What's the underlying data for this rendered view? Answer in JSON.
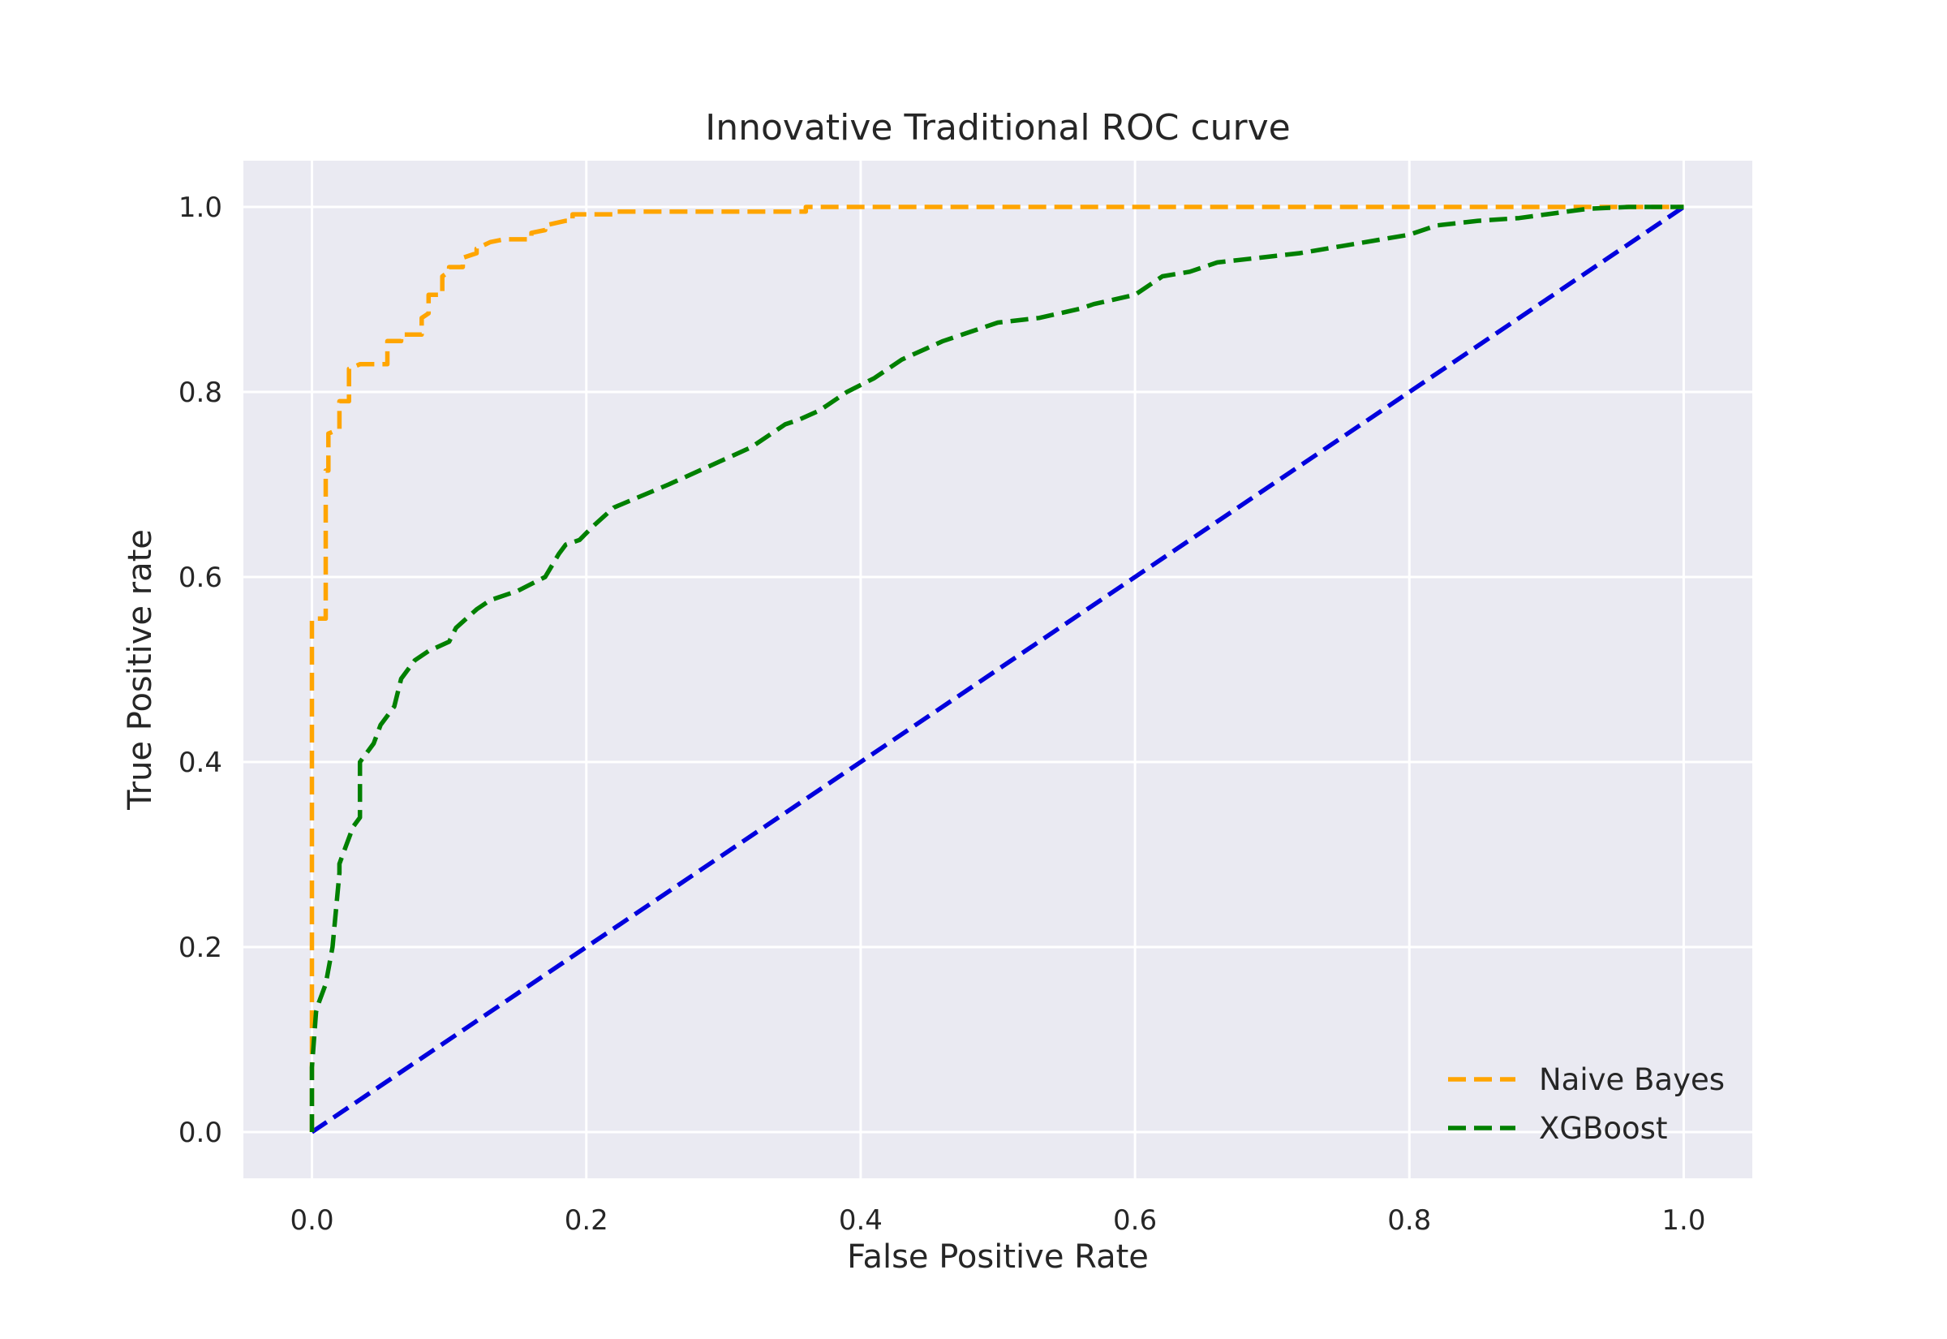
{
  "chart_data": {
    "type": "line",
    "title": "Innovative Traditional ROC curve",
    "xlabel": "False Positive Rate",
    "ylabel": "True Positive rate",
    "xlim": [
      -0.05,
      1.05
    ],
    "ylim": [
      -0.05,
      1.05
    ],
    "xticks": [
      0.0,
      0.2,
      0.4,
      0.6,
      0.8,
      1.0
    ],
    "yticks": [
      0.0,
      0.2,
      0.4,
      0.6,
      0.8,
      1.0
    ],
    "xtick_labels": [
      "0.0",
      "0.2",
      "0.4",
      "0.6",
      "0.8",
      "1.0"
    ],
    "ytick_labels": [
      "0.0",
      "0.2",
      "0.4",
      "0.6",
      "0.8",
      "1.0"
    ],
    "grid": true,
    "legend_position": "lower-right",
    "series": [
      {
        "name": "Naive Bayes",
        "color": "#ffa500",
        "dashed": true,
        "in_legend": true,
        "x": [
          0.0,
          0.0,
          0.0,
          0.01,
          0.01,
          0.012,
          0.012,
          0.02,
          0.02,
          0.027,
          0.027,
          0.035,
          0.045,
          0.055,
          0.055,
          0.065,
          0.065,
          0.075,
          0.08,
          0.08,
          0.085,
          0.085,
          0.095,
          0.095,
          0.1,
          0.1,
          0.11,
          0.11,
          0.12,
          0.12,
          0.13,
          0.14,
          0.16,
          0.16,
          0.17,
          0.17,
          0.185,
          0.19,
          0.19,
          0.22,
          0.22,
          0.3,
          0.35,
          0.36,
          0.36,
          0.6,
          0.8,
          0.9,
          1.0
        ],
        "y": [
          0.0,
          0.08,
          0.555,
          0.555,
          0.715,
          0.715,
          0.755,
          0.76,
          0.79,
          0.79,
          0.825,
          0.83,
          0.83,
          0.83,
          0.855,
          0.855,
          0.862,
          0.862,
          0.862,
          0.88,
          0.885,
          0.905,
          0.905,
          0.925,
          0.93,
          0.935,
          0.935,
          0.945,
          0.95,
          0.955,
          0.962,
          0.965,
          0.965,
          0.972,
          0.975,
          0.98,
          0.985,
          0.985,
          0.992,
          0.992,
          0.995,
          0.995,
          0.995,
          0.995,
          1.0,
          1.0,
          1.0,
          1.0,
          1.0
        ]
      },
      {
        "name": "XGBoost",
        "color": "#008000",
        "dashed": true,
        "in_legend": true,
        "x": [
          0.0,
          0.0,
          0.003,
          0.005,
          0.01,
          0.015,
          0.02,
          0.02,
          0.025,
          0.03,
          0.035,
          0.035,
          0.045,
          0.05,
          0.06,
          0.065,
          0.075,
          0.085,
          0.1,
          0.105,
          0.12,
          0.13,
          0.15,
          0.17,
          0.18,
          0.185,
          0.195,
          0.205,
          0.22,
          0.26,
          0.32,
          0.335,
          0.345,
          0.355,
          0.37,
          0.39,
          0.41,
          0.43,
          0.46,
          0.48,
          0.5,
          0.53,
          0.56,
          0.57,
          0.6,
          0.62,
          0.64,
          0.66,
          0.69,
          0.72,
          0.74,
          0.76,
          0.78,
          0.8,
          0.82,
          0.85,
          0.88,
          0.9,
          0.93,
          0.96,
          1.0
        ],
        "y": [
          0.0,
          0.07,
          0.13,
          0.14,
          0.16,
          0.2,
          0.28,
          0.29,
          0.31,
          0.33,
          0.34,
          0.4,
          0.42,
          0.44,
          0.46,
          0.49,
          0.51,
          0.52,
          0.53,
          0.545,
          0.565,
          0.575,
          0.585,
          0.6,
          0.625,
          0.635,
          0.64,
          0.655,
          0.675,
          0.7,
          0.74,
          0.755,
          0.765,
          0.77,
          0.78,
          0.8,
          0.815,
          0.835,
          0.855,
          0.865,
          0.875,
          0.88,
          0.89,
          0.895,
          0.905,
          0.925,
          0.93,
          0.94,
          0.945,
          0.95,
          0.955,
          0.96,
          0.965,
          0.97,
          0.98,
          0.985,
          0.988,
          0.992,
          0.998,
          1.0,
          1.0
        ]
      },
      {
        "color": "#0000dd",
        "dashed": true,
        "in_legend": false,
        "x": [
          0.0,
          1.0
        ],
        "y": [
          0.0,
          1.0
        ]
      }
    ]
  }
}
